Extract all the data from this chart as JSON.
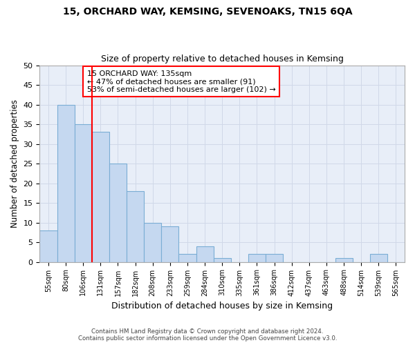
{
  "title": "15, ORCHARD WAY, KEMSING, SEVENOAKS, TN15 6QA",
  "subtitle": "Size of property relative to detached houses in Kemsing",
  "xlabel": "Distribution of detached houses by size in Kemsing",
  "ylabel": "Number of detached properties",
  "categories": [
    "55sqm",
    "80sqm",
    "106sqm",
    "131sqm",
    "157sqm",
    "182sqm",
    "208sqm",
    "233sqm",
    "259sqm",
    "284sqm",
    "310sqm",
    "335sqm",
    "361sqm",
    "386sqm",
    "412sqm",
    "437sqm",
    "463sqm",
    "488sqm",
    "514sqm",
    "539sqm",
    "565sqm"
  ],
  "values": [
    8,
    40,
    35,
    33,
    25,
    18,
    10,
    9,
    2,
    4,
    1,
    0,
    2,
    2,
    0,
    0,
    0,
    1,
    0,
    2,
    0
  ],
  "bar_color": "#c5d8f0",
  "bar_edge_color": "#7aadd4",
  "reference_line_index": 3,
  "reference_line_color": "red",
  "annotation_title": "15 ORCHARD WAY: 135sqm",
  "annotation_line1": "← 47% of detached houses are smaller (91)",
  "annotation_line2": "53% of semi-detached houses are larger (102) →",
  "ylim": [
    0,
    50
  ],
  "yticks": [
    0,
    5,
    10,
    15,
    20,
    25,
    30,
    35,
    40,
    45,
    50
  ],
  "grid_color": "#d0d8e8",
  "bg_color": "#e8eef8",
  "footer1": "Contains HM Land Registry data © Crown copyright and database right 2024.",
  "footer2": "Contains public sector information licensed under the Open Government Licence v3.0."
}
